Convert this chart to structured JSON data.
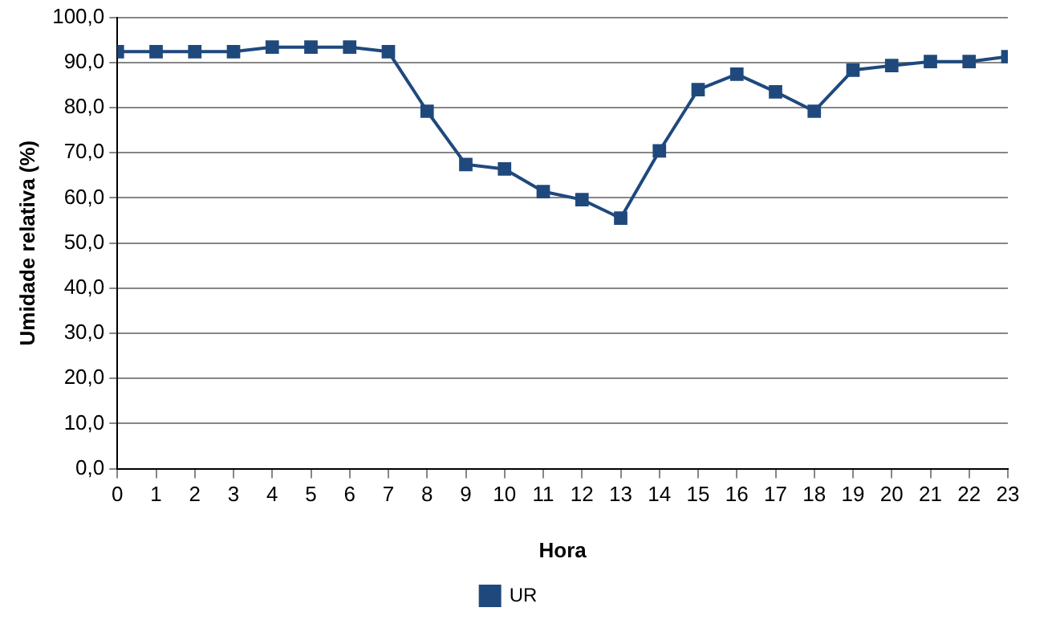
{
  "chart_data": {
    "type": "line",
    "xlabel": "Hora",
    "ylabel": "Umidade relativa (%)",
    "x": [
      0,
      1,
      2,
      3,
      4,
      5,
      6,
      7,
      8,
      9,
      10,
      11,
      12,
      13,
      14,
      15,
      16,
      17,
      18,
      19,
      20,
      21,
      22,
      23
    ],
    "series": [
      {
        "name": "UR",
        "color": "#1f497d",
        "values": [
          92.4,
          92.4,
          92.4,
          92.4,
          93.4,
          93.4,
          93.4,
          92.4,
          79.2,
          67.4,
          66.4,
          61.4,
          59.6,
          55.5,
          70.4,
          84,
          87.4,
          83.5,
          79.2,
          88.3,
          89.3,
          90.2,
          90.2,
          91.3
        ]
      }
    ],
    "xlim": [
      0,
      23
    ],
    "xticks": [
      0,
      1,
      2,
      3,
      4,
      5,
      6,
      7,
      8,
      9,
      10,
      11,
      12,
      13,
      14,
      15,
      16,
      17,
      18,
      19,
      20,
      21,
      22,
      23
    ],
    "ylim": [
      0,
      100
    ],
    "yticks": [
      {
        "value": 0,
        "label": "0,0"
      },
      {
        "value": 10,
        "label": "10,0"
      },
      {
        "value": 20,
        "label": "20,0"
      },
      {
        "value": 30,
        "label": "30,0"
      },
      {
        "value": 40,
        "label": "40,0"
      },
      {
        "value": 50,
        "label": "50,0"
      },
      {
        "value": 60,
        "label": "60,0"
      },
      {
        "value": 70,
        "label": "70,0"
      },
      {
        "value": 80,
        "label": "80,0"
      },
      {
        "value": 90,
        "label": "90,0"
      },
      {
        "value": 100,
        "label": "100,0"
      }
    ],
    "grid": "y",
    "legend": "bottom",
    "marker": "square",
    "line_style": "solid"
  }
}
